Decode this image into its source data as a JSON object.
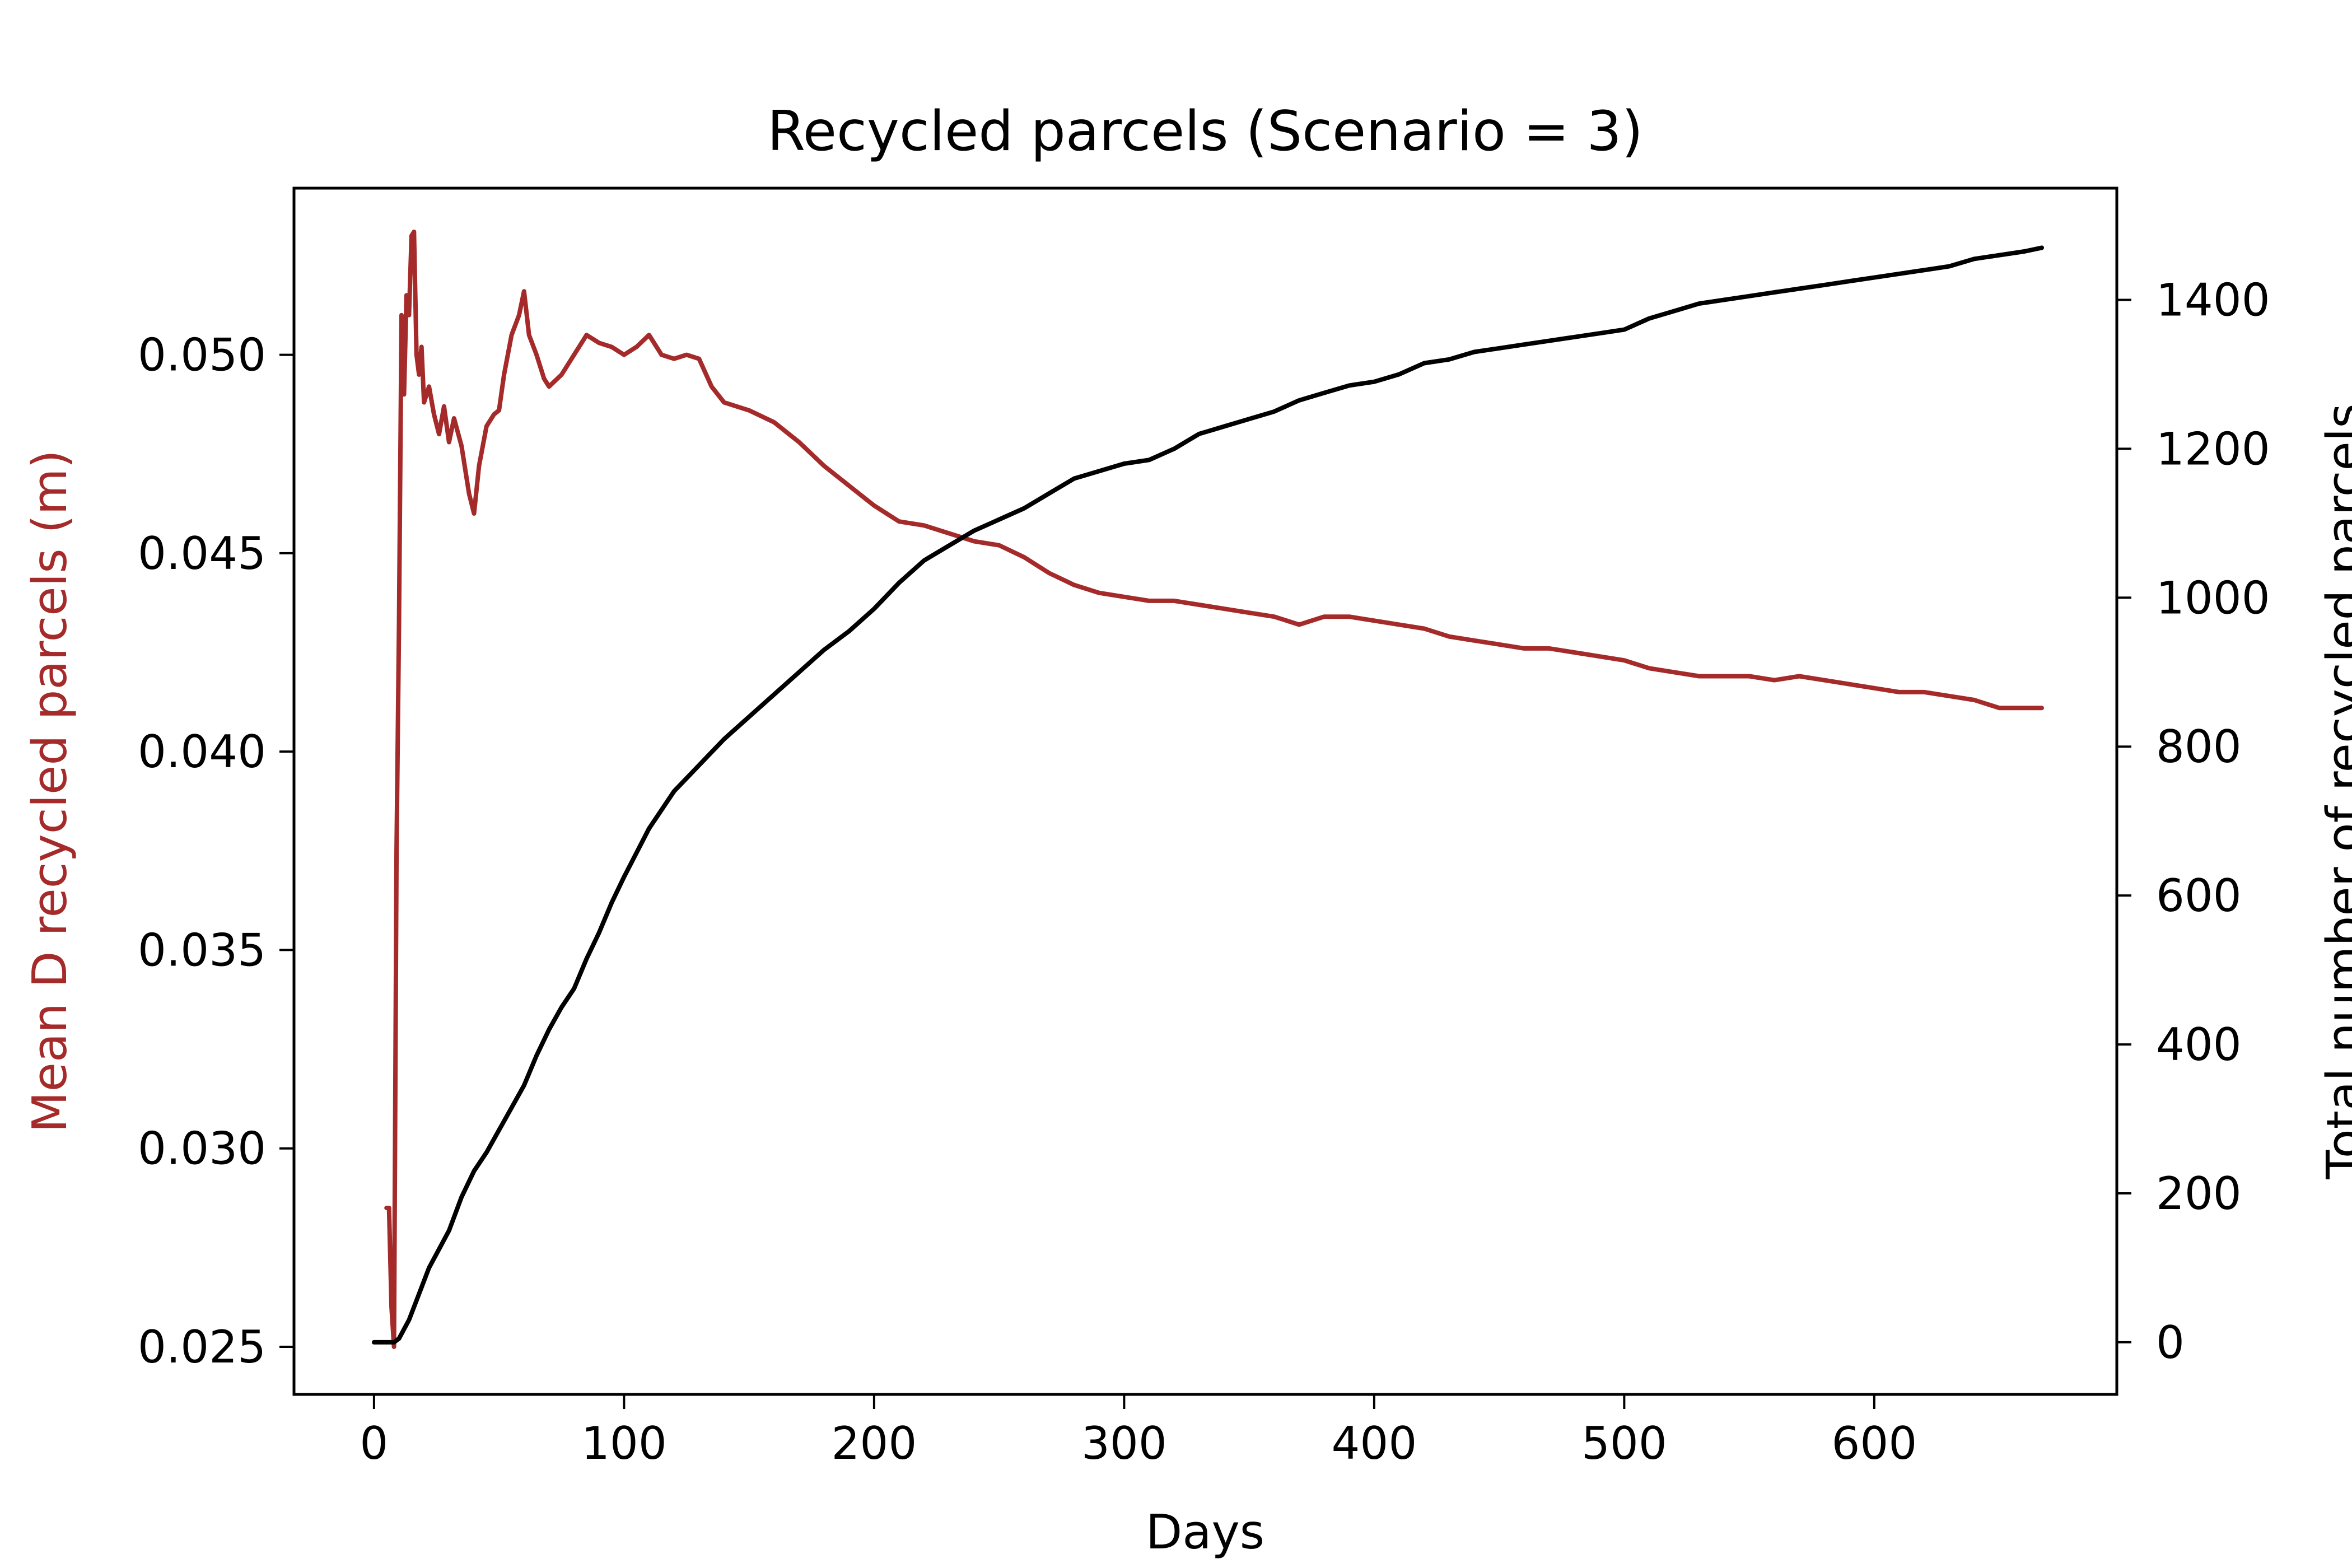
{
  "chart_data": {
    "type": "line",
    "title": "Recycled parcels (Scenario = 3)",
    "xlabel": "Days",
    "ylabel_left": "Mean D recycled parcels (m)",
    "ylabel_right": "Total number of recycled parcels",
    "xlim": [
      -32,
      697
    ],
    "ylim_left": [
      0.0238,
      0.0542
    ],
    "ylim_right": [
      -70,
      1550
    ],
    "x_ticks": [
      0,
      100,
      200,
      300,
      400,
      500,
      600
    ],
    "y_left_ticks": [
      "0.025",
      "0.030",
      "0.035",
      "0.040",
      "0.045",
      "0.050"
    ],
    "y_right_ticks": [
      0,
      200,
      400,
      600,
      800,
      1000,
      1200,
      1400
    ],
    "grid": false,
    "colors": {
      "left_series": "#a52a2a",
      "right_series": "#000000"
    },
    "series": [
      {
        "name": "Mean D recycled parcels (m)",
        "axis": "left",
        "color": "#a52a2a",
        "x": [
          5,
          6,
          7,
          8,
          9,
          10,
          11,
          12,
          13,
          14,
          15,
          16,
          17,
          18,
          19,
          20,
          22,
          24,
          26,
          28,
          30,
          32,
          35,
          38,
          40,
          42,
          45,
          48,
          50,
          52,
          55,
          58,
          60,
          62,
          65,
          68,
          70,
          75,
          80,
          85,
          90,
          95,
          100,
          105,
          110,
          115,
          120,
          125,
          130,
          135,
          140,
          150,
          160,
          170,
          180,
          190,
          200,
          210,
          220,
          230,
          240,
          250,
          260,
          270,
          280,
          290,
          300,
          310,
          320,
          330,
          340,
          350,
          360,
          370,
          380,
          390,
          400,
          410,
          420,
          430,
          440,
          450,
          460,
          470,
          480,
          490,
          500,
          510,
          520,
          530,
          540,
          550,
          560,
          570,
          580,
          590,
          600,
          610,
          620,
          630,
          640,
          650,
          660,
          667
        ],
        "y": [
          0.0285,
          0.0285,
          0.026,
          0.025,
          0.0375,
          0.0432,
          0.051,
          0.049,
          0.0515,
          0.051,
          0.053,
          0.0531,
          0.05,
          0.0495,
          0.0502,
          0.0488,
          0.0492,
          0.0485,
          0.048,
          0.0487,
          0.0478,
          0.0484,
          0.0477,
          0.0465,
          0.046,
          0.0472,
          0.0482,
          0.0485,
          0.0486,
          0.0495,
          0.0505,
          0.051,
          0.0516,
          0.0505,
          0.05,
          0.0494,
          0.0492,
          0.0495,
          0.05,
          0.0505,
          0.0503,
          0.0502,
          0.05,
          0.0502,
          0.0505,
          0.05,
          0.0499,
          0.05,
          0.0499,
          0.0492,
          0.0488,
          0.0486,
          0.0483,
          0.0478,
          0.0472,
          0.0467,
          0.0462,
          0.0458,
          0.0457,
          0.0455,
          0.0453,
          0.0452,
          0.0449,
          0.0445,
          0.0442,
          0.044,
          0.0439,
          0.0438,
          0.0438,
          0.0437,
          0.0436,
          0.0435,
          0.0434,
          0.0432,
          0.0434,
          0.0434,
          0.0433,
          0.0432,
          0.0431,
          0.0429,
          0.0428,
          0.0427,
          0.0426,
          0.0426,
          0.0425,
          0.0424,
          0.0423,
          0.0421,
          0.042,
          0.0419,
          0.0419,
          0.0419,
          0.0418,
          0.0419,
          0.0418,
          0.0417,
          0.0416,
          0.0415,
          0.0415,
          0.0414,
          0.0413,
          0.0411,
          0.0411,
          0.0411
        ]
      },
      {
        "name": "Total number of recycled parcels",
        "axis": "right",
        "color": "#000000",
        "x": [
          0,
          8,
          10,
          14,
          18,
          22,
          26,
          30,
          35,
          40,
          45,
          50,
          55,
          60,
          65,
          70,
          75,
          80,
          85,
          90,
          95,
          100,
          110,
          120,
          130,
          140,
          150,
          160,
          170,
          180,
          190,
          200,
          210,
          220,
          230,
          240,
          250,
          260,
          270,
          280,
          290,
          300,
          310,
          320,
          330,
          340,
          350,
          360,
          370,
          380,
          390,
          400,
          410,
          420,
          430,
          440,
          450,
          460,
          470,
          480,
          490,
          500,
          510,
          520,
          530,
          540,
          550,
          560,
          570,
          580,
          590,
          600,
          610,
          620,
          630,
          640,
          650,
          660,
          667
        ],
        "y": [
          0,
          0,
          5,
          30,
          65,
          100,
          125,
          150,
          195,
          230,
          255,
          285,
          315,
          345,
          385,
          420,
          450,
          475,
          515,
          550,
          590,
          625,
          690,
          740,
          775,
          810,
          840,
          870,
          900,
          930,
          955,
          985,
          1020,
          1050,
          1070,
          1090,
          1105,
          1120,
          1140,
          1160,
          1170,
          1180,
          1185,
          1200,
          1220,
          1230,
          1240,
          1250,
          1265,
          1275,
          1285,
          1290,
          1300,
          1315,
          1320,
          1330,
          1335,
          1340,
          1345,
          1350,
          1355,
          1360,
          1375,
          1385,
          1395,
          1400,
          1405,
          1410,
          1415,
          1420,
          1425,
          1430,
          1435,
          1440,
          1445,
          1455,
          1460,
          1465,
          1470
        ]
      }
    ]
  }
}
